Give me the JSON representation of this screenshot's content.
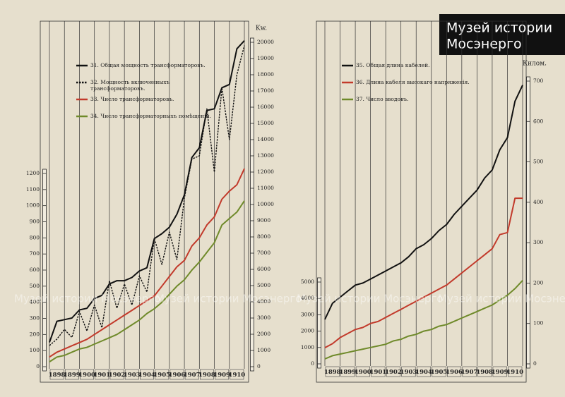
{
  "logo": [
    "Музей истории",
    "Мосэнерго"
  ],
  "watermark": "Музей истории Мосэнерго",
  "chart_data": [
    {
      "type": "line",
      "grid": "x",
      "x": [
        1898,
        1898.5,
        1899,
        1899.5,
        1900,
        1900.5,
        1901,
        1901.5,
        1902,
        1902.5,
        1903,
        1903.5,
        1904,
        1904.5,
        1905,
        1905.5,
        1906,
        1906.5,
        1907,
        1907.5,
        1908,
        1908.5,
        1909,
        1909.5,
        1910,
        1910.5,
        1911
      ],
      "xlim": [
        1898,
        1911
      ],
      "xticks": [
        1898,
        1899,
        1900,
        1901,
        1902,
        1903,
        1904,
        1905,
        1906,
        1907,
        1908,
        1909,
        1910
      ],
      "ylim": [
        0,
        1200
      ],
      "yticks": [
        0,
        100,
        200,
        300,
        400,
        500,
        600,
        700,
        800,
        900,
        1000,
        1100,
        1200
      ],
      "y2label": "Kw.",
      "y2lim": [
        0,
        20000
      ],
      "y2ticks": [
        0,
        1000,
        2000,
        3000,
        4000,
        5000,
        6000,
        7000,
        8000,
        9000,
        10000,
        11000,
        12000,
        13000,
        14000,
        15000,
        16000,
        17000,
        18000,
        19000,
        20000
      ],
      "series": [
        {
          "name": "31. Общая мощность трансформаторовъ.",
          "color": "#111111",
          "axis": "y2",
          "values": [
            1500,
            2800,
            2900,
            3000,
            3500,
            3600,
            4200,
            4400,
            5100,
            5300,
            5300,
            5500,
            5900,
            6100,
            7900,
            8200,
            8600,
            9400,
            10600,
            12900,
            13500,
            15800,
            15900,
            17200,
            17400,
            19600,
            20100
          ]
        },
        {
          "name": "32. Мощность включенныхъ трансформаторовъ.",
          "color": "#111111",
          "axis": "y2",
          "dash": true,
          "values": [
            1300,
            1700,
            2300,
            1800,
            3400,
            2200,
            3800,
            2400,
            5300,
            3600,
            5100,
            3800,
            5600,
            4600,
            7900,
            6300,
            8300,
            6600,
            10400,
            12800,
            13000,
            15900,
            12000,
            17200,
            14000,
            18000,
            19800
          ]
        },
        {
          "name": "33. Число трансформаторовъ.",
          "color": "#c23a2b",
          "values": [
            60,
            90,
            110,
            130,
            150,
            170,
            200,
            230,
            260,
            290,
            320,
            350,
            380,
            410,
            440,
            500,
            560,
            620,
            660,
            750,
            800,
            880,
            930,
            1040,
            1090,
            1130,
            1230
          ]
        },
        {
          "name": "34. Число трансформаторныхъ помѣщеній.",
          "color": "#6f8a2a",
          "values": [
            30,
            60,
            70,
            90,
            110,
            120,
            140,
            160,
            180,
            200,
            230,
            260,
            290,
            330,
            360,
            400,
            450,
            500,
            540,
            600,
            650,
            710,
            770,
            880,
            920,
            960,
            1030
          ]
        }
      ]
    },
    {
      "type": "line",
      "grid": "x",
      "x": [
        1898,
        1898.5,
        1899,
        1899.5,
        1900,
        1900.5,
        1901,
        1901.5,
        1902,
        1902.5,
        1903,
        1903.5,
        1904,
        1904.5,
        1905,
        1905.5,
        1906,
        1906.5,
        1907,
        1907.5,
        1908,
        1908.5,
        1909,
        1909.5,
        1910,
        1910.5,
        1911
      ],
      "xlim": [
        1898,
        1911
      ],
      "xticks": [
        1898,
        1899,
        1900,
        1901,
        1902,
        1903,
        1904,
        1905,
        1906,
        1907,
        1908,
        1909,
        1910
      ],
      "ylim": [
        0,
        5000
      ],
      "yticks": [
        0,
        1000,
        2000,
        3000,
        4000,
        5000
      ],
      "y2label": "Килом.",
      "y2lim": [
        0,
        700
      ],
      "y2ticks": [
        0,
        100,
        200,
        300,
        400,
        500,
        600,
        700
      ],
      "series": [
        {
          "name": "35. Общая длина кабелей.",
          "color": "#111111",
          "axis": "y2",
          "values": [
            110,
            150,
            165,
            180,
            195,
            200,
            210,
            220,
            230,
            240,
            250,
            265,
            285,
            295,
            310,
            330,
            345,
            370,
            390,
            410,
            430,
            460,
            480,
            530,
            560,
            650,
            690
          ]
        },
        {
          "name": "36. Длина кабеля высокаго напряженія.",
          "color": "#c23a2b",
          "axis": "y2",
          "values": [
            40,
            50,
            65,
            75,
            85,
            90,
            100,
            105,
            115,
            125,
            135,
            145,
            155,
            165,
            175,
            185,
            195,
            210,
            225,
            240,
            255,
            270,
            285,
            320,
            325,
            410,
            410
          ]
        },
        {
          "name": "37. Число вводовъ.",
          "color": "#6f8a2a",
          "values": [
            300,
            500,
            600,
            700,
            800,
            900,
            1000,
            1100,
            1200,
            1400,
            1500,
            1700,
            1800,
            2000,
            2100,
            2300,
            2400,
            2600,
            2800,
            3000,
            3200,
            3400,
            3600,
            3900,
            4200,
            4600,
            5100
          ]
        }
      ]
    }
  ]
}
